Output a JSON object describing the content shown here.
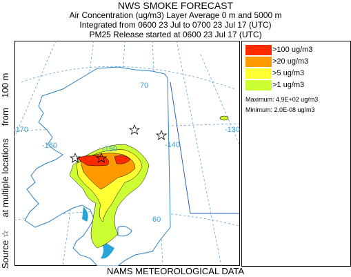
{
  "header": {
    "title": "NWS SMOKE FORECAST",
    "line1": "Air Concentration (ug/m3) Layer Average    0 m and  5000 m",
    "line2": "Integrated from 0600 23 Jul to 0700 23 Jul 17 (UTC)",
    "line3": "PM25 Release started at 0600 23 Jul 17 (UTC)"
  },
  "side_label": {
    "source": "Source",
    "star": "☆",
    "location": "at multiple locations",
    "from": "from",
    "height": "100 m"
  },
  "footer": "NAMS METEOROLOGICAL DATA",
  "legend": {
    "items": [
      {
        "label": ">100 ug/m3",
        "color": "#ff2a00"
      },
      {
        "label": ">20 ug/m3",
        "color": "#ff9a00"
      },
      {
        "label": ">5 ug/m3",
        "color": "#ffff33"
      },
      {
        "label": ">1 ug/m3",
        "color": "#ccff33"
      }
    ],
    "maximum": "Maximum: 4.9E+02 ug/m3",
    "minimum": "Minimum: 2.0E-08 ug/m3"
  },
  "map": {
    "graticule_labels": [
      "-170",
      "-160",
      "-150",
      "-140",
      "-130",
      "70",
      "60"
    ],
    "land_color": "#ffffff",
    "water_color": "#2aa4d8",
    "boundary_color": "#1f5fbf"
  }
}
